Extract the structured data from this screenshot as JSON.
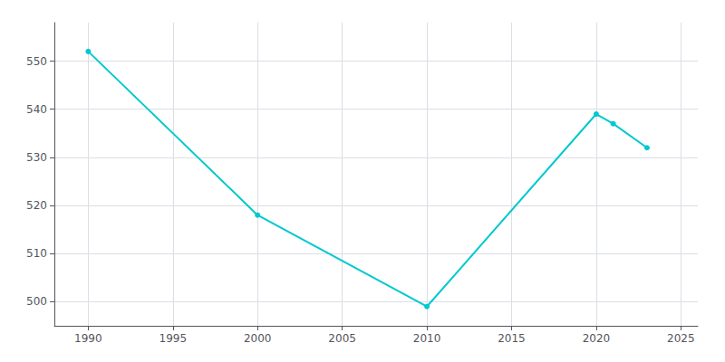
{
  "chart_data": {
    "type": "line",
    "x": [
      1990,
      2000,
      2010,
      2020,
      2021,
      2023
    ],
    "values": [
      552,
      518,
      499,
      539,
      537,
      532
    ],
    "color": "#00c8d0",
    "marker": "circle",
    "xlim": [
      1988,
      2026
    ],
    "ylim": [
      495,
      558
    ],
    "xticks": [
      1990,
      1995,
      2000,
      2005,
      2010,
      2015,
      2020,
      2025
    ],
    "yticks": [
      500,
      510,
      520,
      530,
      540,
      550
    ],
    "grid": true
  }
}
